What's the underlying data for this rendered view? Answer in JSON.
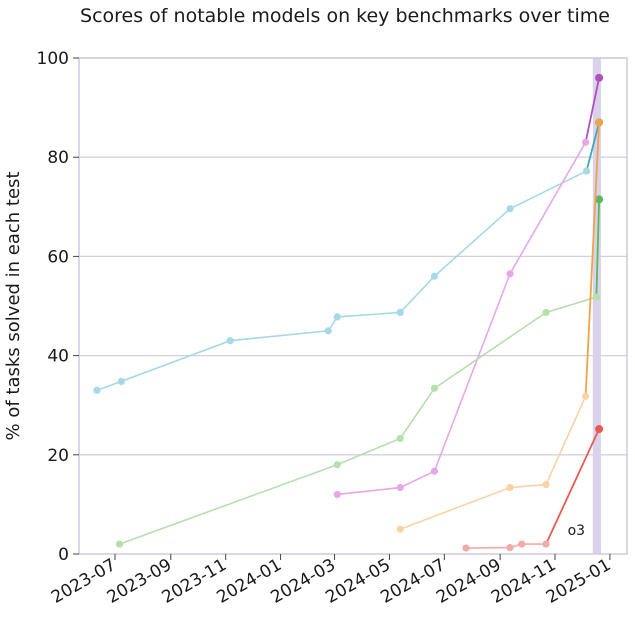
{
  "chart_data": {
    "type": "line",
    "title": "Scores of notable models on key benchmarks over time",
    "ylabel": "% of tasks solved in each test",
    "xlabel": "",
    "ylim": [
      0,
      100
    ],
    "xlim": [
      "2023-05-22",
      "2025-01-20"
    ],
    "grid": "horizontal",
    "legend": "none",
    "x_ticks": [
      "2023-07",
      "2023-09",
      "2023-11",
      "2024-01",
      "2024-03",
      "2024-05",
      "2024-07",
      "2024-09",
      "2024-11",
      "2025-01"
    ],
    "y_ticks": [
      0,
      20,
      40,
      60,
      80,
      100
    ],
    "highlight_band": {
      "start": "2024-12-13",
      "end": "2024-12-22",
      "color": "#d9d2ea"
    },
    "annotation": {
      "text": "o3",
      "x": "2024-11-15",
      "y": 5
    },
    "series": [
      {
        "color": "#a6d8e6",
        "final_color": "#3aa9c0",
        "x": [
          "2023-06-11",
          "2023-07-08",
          "2023-11-06",
          "2024-02-23",
          "2024-03-04",
          "2024-05-13",
          "2024-06-20",
          "2024-09-12",
          "2024-12-06",
          "2024-12-20"
        ],
        "values": [
          33,
          34.8,
          43,
          45,
          47.8,
          48.7,
          56,
          69.6,
          77.2,
          87
        ]
      },
      {
        "color": "#e6a8e8",
        "final_color": "#b04fc0",
        "x": [
          "2024-03-04",
          "2024-05-13",
          "2024-06-20",
          "2024-09-12",
          "2024-12-05",
          "2024-12-20"
        ],
        "values": [
          12,
          13.4,
          16.7,
          56.5,
          83,
          96
        ]
      },
      {
        "color": "#b6dfae",
        "final_color": "#5cb85c",
        "x": [
          "2023-07-06",
          "2024-03-04",
          "2024-05-13",
          "2024-06-20",
          "2024-10-22",
          "2024-12-17",
          "2024-12-20"
        ],
        "values": [
          2,
          18,
          23.3,
          33.4,
          48.7,
          51.8,
          71.5
        ]
      },
      {
        "color": "#f8d3a6",
        "final_color": "#f0a34a",
        "x": [
          "2024-05-13",
          "2024-09-12",
          "2024-10-22",
          "2024-12-05",
          "2024-12-20"
        ],
        "values": [
          5,
          13.4,
          14,
          31.8,
          87
        ]
      },
      {
        "color": "#f4aaa6",
        "final_color": "#e85c50",
        "x": [
          "2024-07-25",
          "2024-09-12",
          "2024-09-25",
          "2024-10-22",
          "2024-12-20"
        ],
        "values": [
          1.2,
          1.3,
          2,
          2,
          25.2
        ]
      }
    ]
  }
}
